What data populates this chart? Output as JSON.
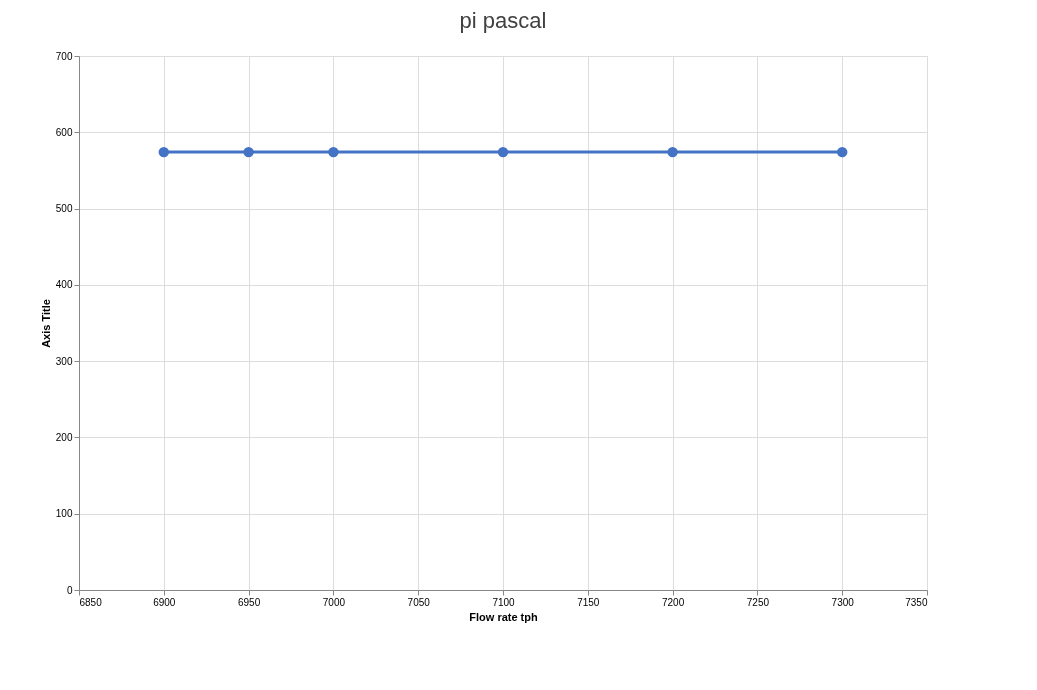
{
  "chart_data": {
    "type": "line",
    "title": "pi pascal",
    "xlabel": "Flow rate tph",
    "ylabel": "Axis Title",
    "x": [
      6900,
      6950,
      7000,
      7100,
      7200,
      7300
    ],
    "series": [
      {
        "color": "#4472c4",
        "values": [
          574,
          574,
          574,
          574,
          574,
          574
        ]
      }
    ],
    "xlim": [
      6850,
      7350
    ],
    "xticks": [
      6850,
      6900,
      6950,
      7000,
      7050,
      7100,
      7150,
      7200,
      7250,
      7300,
      7350
    ],
    "ylim": [
      0,
      700
    ],
    "yticks": [
      0,
      100,
      200,
      300,
      400,
      500,
      600,
      700
    ],
    "grid": true,
    "marker": "circle",
    "line_style": "solid"
  }
}
